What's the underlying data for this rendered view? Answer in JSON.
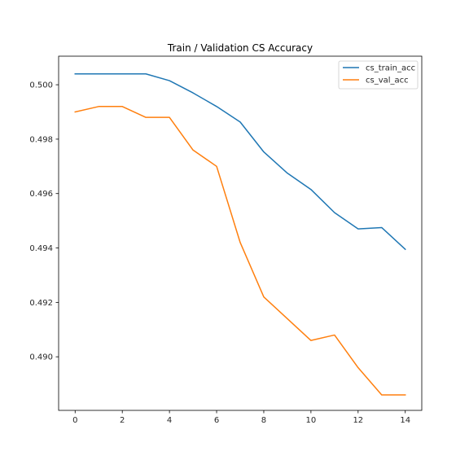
{
  "chart_data": {
    "type": "line",
    "title": "Train / Validation CS Accuracy",
    "xlabel": "",
    "ylabel": "",
    "xlim": [
      -0.7,
      14.7
    ],
    "ylim": [
      0.48803,
      0.50105
    ],
    "x": [
      0,
      1,
      2,
      3,
      4,
      5,
      6,
      7,
      8,
      9,
      10,
      11,
      12,
      13,
      14
    ],
    "x_ticks": [
      0,
      2,
      4,
      6,
      8,
      10,
      12,
      14
    ],
    "x_tick_labels": [
      "0",
      "2",
      "4",
      "6",
      "8",
      "10",
      "12",
      "14"
    ],
    "y_ticks": [
      0.49,
      0.492,
      0.494,
      0.496,
      0.498,
      0.5
    ],
    "y_tick_labels": [
      "0.490",
      "0.492",
      "0.494",
      "0.496",
      "0.498",
      "0.500"
    ],
    "grid": false,
    "legend_position": "top-right",
    "series": [
      {
        "name": "cs_train_acc",
        "color": "#1f77b4",
        "values": [
          0.5004,
          0.5004,
          0.5004,
          0.5004,
          0.50015,
          0.4997,
          0.4992,
          0.49863,
          0.49753,
          0.49675,
          0.49615,
          0.4953,
          0.4947,
          0.49475,
          0.49395
        ]
      },
      {
        "name": "cs_val_acc",
        "color": "#ff7f0e",
        "values": [
          0.499,
          0.4992,
          0.4992,
          0.4988,
          0.4988,
          0.4976,
          0.497,
          0.4942,
          0.4922,
          0.4914,
          0.4906,
          0.4908,
          0.4896,
          0.4886,
          0.4886
        ]
      }
    ]
  }
}
